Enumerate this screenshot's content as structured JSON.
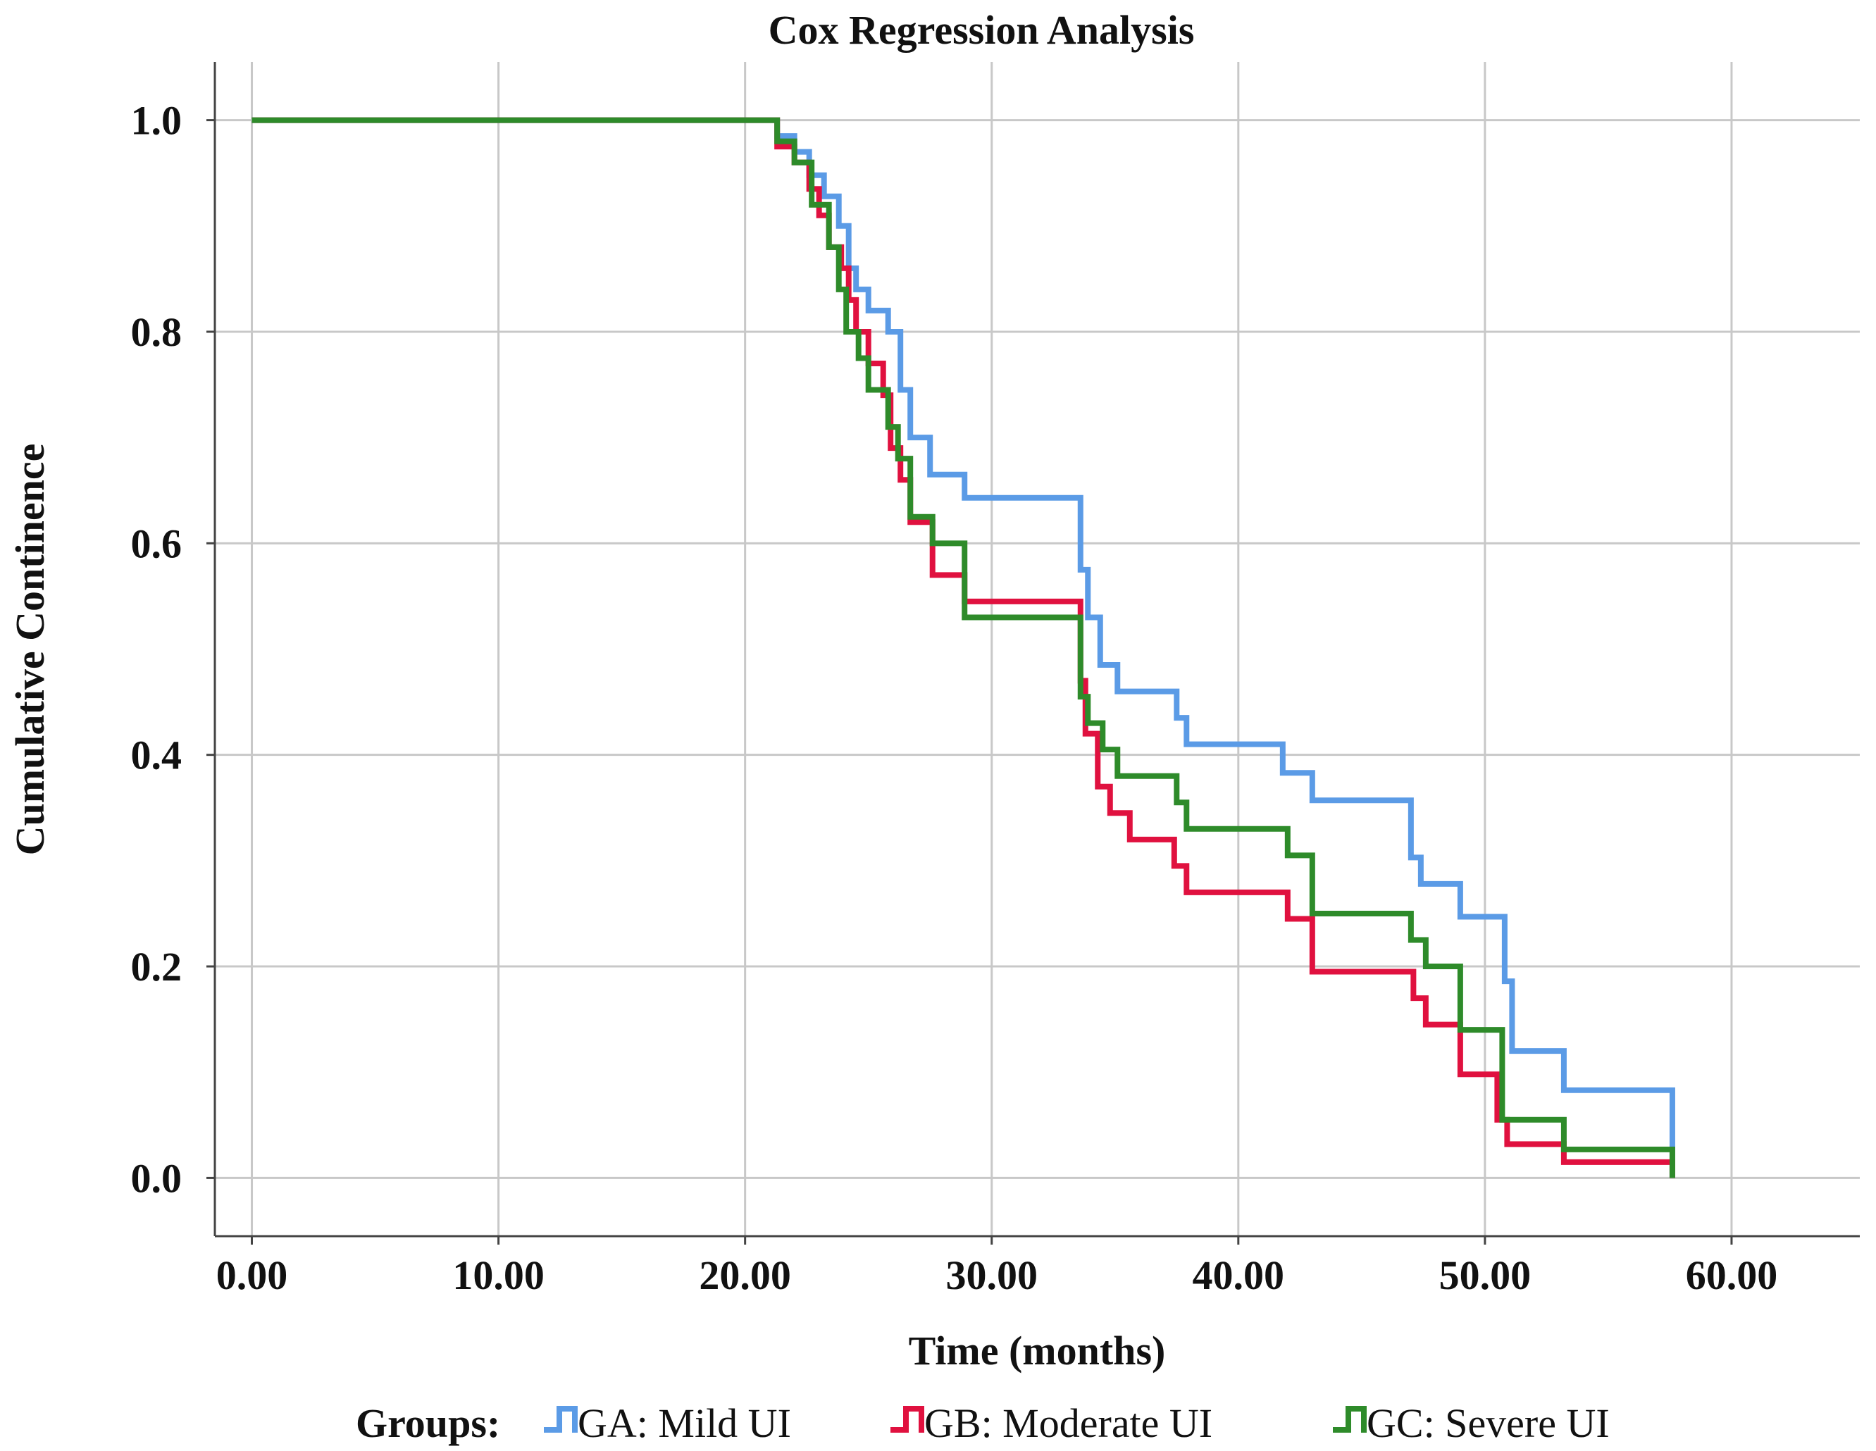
{
  "chart_data": {
    "type": "line",
    "subtype": "step",
    "title": "Cox Regression Analysis",
    "xlabel": "Time (months)",
    "ylabel": "Cumulative Continence",
    "xlim": [
      -1.5,
      65.2
    ],
    "ylim": [
      -0.055,
      1.055
    ],
    "xticks": [
      0,
      10,
      20,
      30,
      40,
      50,
      60
    ],
    "xtick_labels": [
      "0.00",
      "10.00",
      "20.00",
      "30.00",
      "40.00",
      "50.00",
      "60.00"
    ],
    "yticks": [
      0.0,
      0.2,
      0.4,
      0.6,
      0.8,
      1.0
    ],
    "ytick_labels": [
      "0.0",
      "0.2",
      "0.4",
      "0.6",
      "0.8",
      "1.0"
    ],
    "grid": true,
    "legend": {
      "title": "Groups:",
      "position": "bottom",
      "entries": [
        "GA: Mild UI",
        "GB: Moderate UI",
        "GC: Severe UI"
      ]
    },
    "series": [
      {
        "name": "GA: Mild UI",
        "color": "#5b9be6",
        "x": [
          0,
          21.3,
          22.0,
          22.6,
          23.2,
          23.8,
          24.2,
          24.5,
          25.0,
          25.8,
          26.3,
          26.7,
          27.5,
          28.9,
          33.6,
          33.9,
          34.4,
          35.1,
          37.5,
          37.9,
          41.8,
          43.0,
          47.0,
          47.4,
          49.0,
          50.8,
          51.1,
          53.2,
          57.6
        ],
        "y": [
          1.0,
          0.985,
          0.97,
          0.948,
          0.928,
          0.9,
          0.86,
          0.84,
          0.82,
          0.8,
          0.745,
          0.7,
          0.665,
          0.643,
          0.575,
          0.53,
          0.485,
          0.46,
          0.435,
          0.41,
          0.383,
          0.357,
          0.303,
          0.278,
          0.247,
          0.186,
          0.12,
          0.083,
          0.045
        ]
      },
      {
        "name": "GB: Moderate UI",
        "color": "#e0113f",
        "x": [
          0,
          21.3,
          22.0,
          22.6,
          23.0,
          23.4,
          23.9,
          24.2,
          24.5,
          25.0,
          25.6,
          25.9,
          26.3,
          26.7,
          27.6,
          28.9,
          33.6,
          33.8,
          34.3,
          34.8,
          35.6,
          37.4,
          37.9,
          42.0,
          43.0,
          47.1,
          47.6,
          49.0,
          50.5,
          50.9,
          53.2,
          57.6
        ],
        "y": [
          1.0,
          0.975,
          0.96,
          0.935,
          0.91,
          0.88,
          0.86,
          0.83,
          0.8,
          0.77,
          0.74,
          0.69,
          0.66,
          0.62,
          0.57,
          0.545,
          0.47,
          0.42,
          0.37,
          0.345,
          0.32,
          0.295,
          0.27,
          0.245,
          0.195,
          0.17,
          0.145,
          0.098,
          0.055,
          0.032,
          0.015,
          0.0
        ]
      },
      {
        "name": "GC: Severe UI",
        "color": "#2e8b2a",
        "x": [
          0,
          21.3,
          22.0,
          22.7,
          23.4,
          23.8,
          24.1,
          24.6,
          25.0,
          25.8,
          26.2,
          26.7,
          27.6,
          28.9,
          33.6,
          33.9,
          34.5,
          35.1,
          37.5,
          37.9,
          42.0,
          43.0,
          47.0,
          47.6,
          49.0,
          50.7,
          53.2,
          57.6
        ],
        "y": [
          1.0,
          0.98,
          0.96,
          0.92,
          0.88,
          0.84,
          0.8,
          0.775,
          0.745,
          0.71,
          0.68,
          0.625,
          0.6,
          0.53,
          0.455,
          0.43,
          0.405,
          0.38,
          0.355,
          0.33,
          0.305,
          0.25,
          0.225,
          0.2,
          0.14,
          0.055,
          0.027,
          0.0
        ]
      }
    ]
  }
}
